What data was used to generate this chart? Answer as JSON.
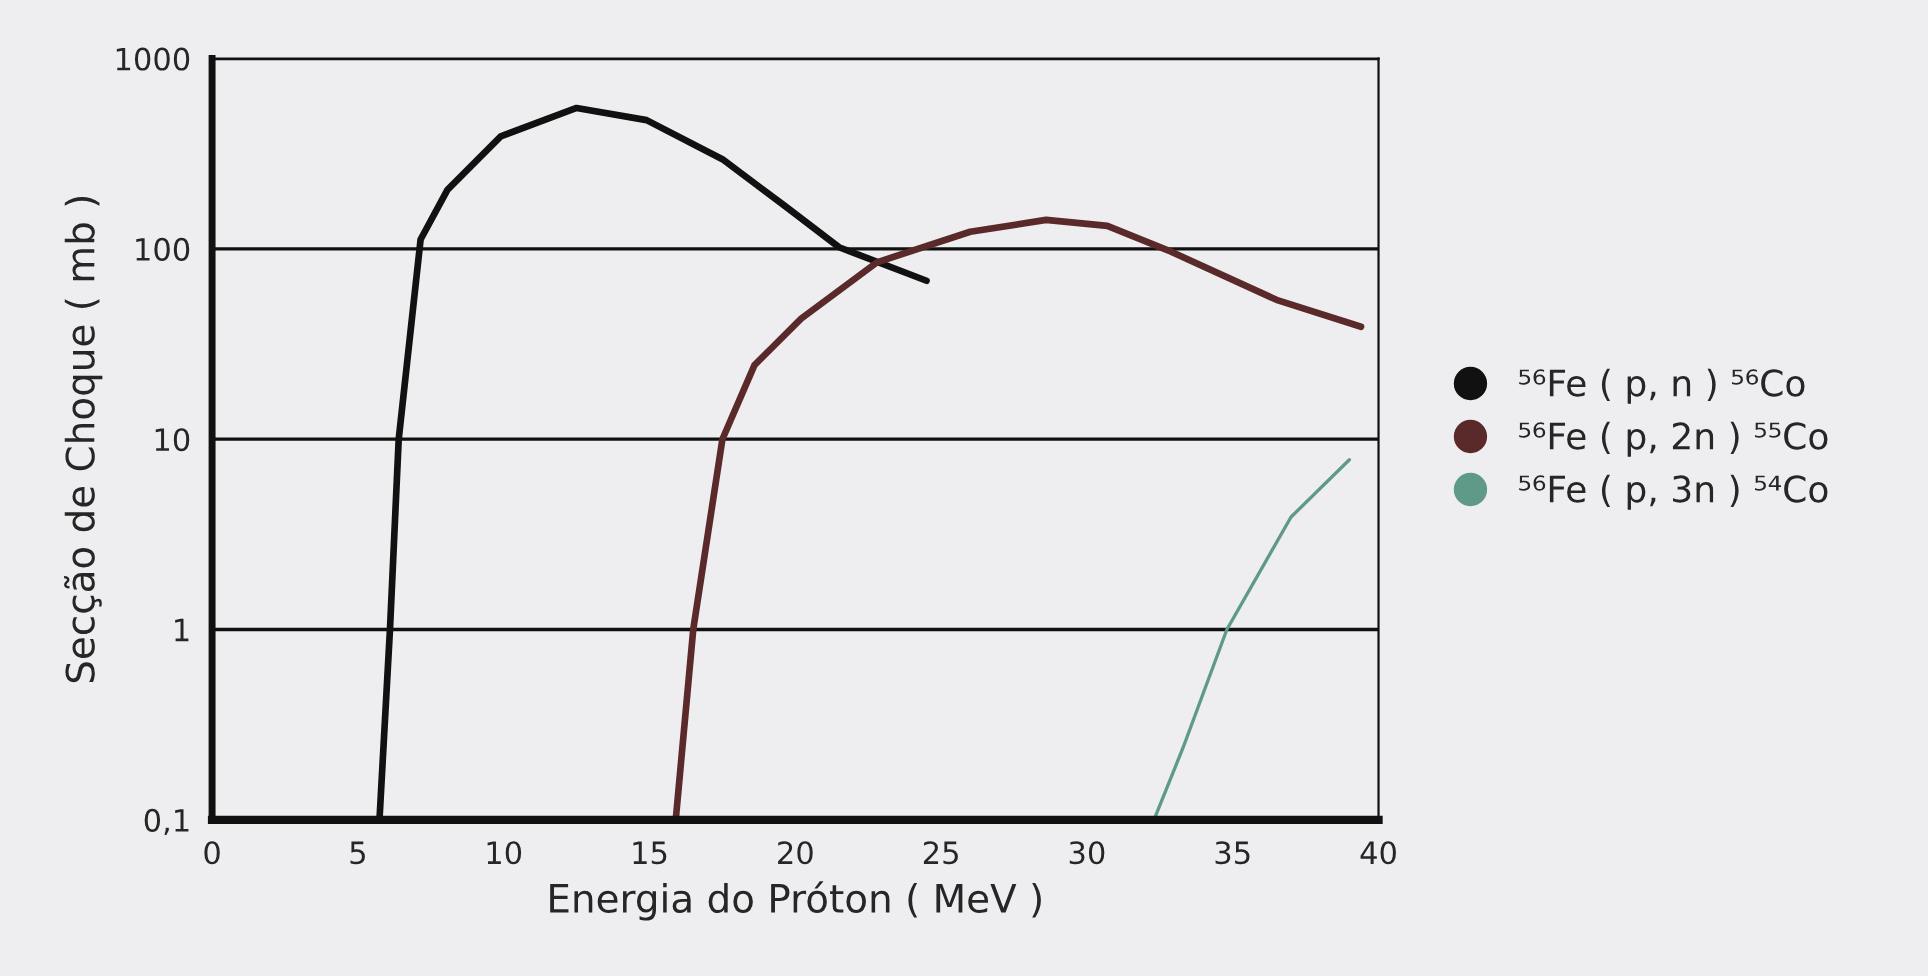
{
  "chart_data": {
    "type": "line",
    "xlabel": "Energia do Próton ( MeV )",
    "ylabel": "Secção de Choque ( mb )",
    "log": "y",
    "xlim": [
      0,
      40
    ],
    "xticks": [
      0,
      5,
      10,
      15,
      20,
      25,
      30,
      35,
      40
    ],
    "ylim": [
      0.1,
      1000
    ],
    "yticks": [
      {
        "value": 0.1,
        "label": "0,1"
      },
      1,
      10,
      100,
      1000
    ],
    "grid": "y",
    "legend": "right",
    "marker": "none",
    "line_style": "solid",
    "series": [
      {
        "name": "⁵⁶Fe ( p, n ) ⁵⁶Co",
        "color": "#111111",
        "x": [
          5.74,
          6.1,
          6.4,
          7.15,
          8.07,
          9.9,
          12.5,
          14.9,
          17.5,
          19.6,
          21.5,
          24.5
        ],
        "values": [
          0.1,
          1,
          10,
          112,
          204,
          390,
          550,
          475,
          296,
          170,
          102,
          68
        ]
      },
      {
        "name": "⁵⁶Fe ( p, 2n ) ⁵⁵Co",
        "color": "#5a2a2a",
        "x": [
          15.9,
          16.5,
          17.5,
          18.6,
          20.2,
          22.8,
          26.0,
          28.6,
          30.7,
          32.8,
          36.5,
          39.4
        ],
        "values": [
          0.1,
          1,
          10,
          24.5,
          43,
          85,
          123,
          142,
          132,
          98,
          54,
          39
        ]
      },
      {
        "name": "⁵⁶Fe ( p, 3n ) ⁵⁴Co",
        "color": "#5f9a88",
        "x": [
          32.3,
          33.3,
          34.8,
          37.0,
          39.0
        ],
        "values": [
          0.1,
          0.24,
          1,
          3.9,
          7.8
        ]
      }
    ]
  }
}
